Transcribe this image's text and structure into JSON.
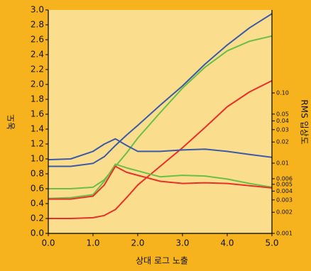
{
  "chart_data": {
    "type": "line",
    "xlabel": "상대 로그 노출",
    "ylabel": "농도",
    "y2label": "RMS 입상도",
    "x": [
      0,
      0.5,
      1,
      1.25,
      1.5,
      1.75,
      2,
      2.5,
      3,
      3.5,
      4,
      4.5,
      5
    ],
    "series": [
      {
        "color": "#3a5ba8",
        "values": [
          0.9,
          0.9,
          0.94,
          1.03,
          1.18,
          1.32,
          1.45,
          1.72,
          1.98,
          2.27,
          2.53,
          2.76,
          2.95
        ]
      },
      {
        "color": "#6bbf45",
        "values": [
          0.6,
          0.6,
          0.62,
          0.72,
          0.9,
          1.08,
          1.28,
          1.62,
          1.95,
          2.23,
          2.45,
          2.58,
          2.65
        ]
      },
      {
        "color": "#e8302a",
        "values": [
          0.2,
          0.2,
          0.21,
          0.24,
          0.32,
          0.48,
          0.65,
          0.9,
          1.15,
          1.42,
          1.7,
          1.9,
          2.05
        ]
      },
      {
        "color": "#3a5ba8",
        "axis": "y2",
        "values": [
          0.0112,
          0.0115,
          0.0147,
          0.0187,
          0.0222,
          0.0179,
          0.0147,
          0.0147,
          0.0154,
          0.0158,
          0.0147,
          0.0133,
          0.0121
        ]
      },
      {
        "color": "#6bbf45",
        "axis": "y2",
        "values": [
          0.00315,
          0.00323,
          0.00356,
          0.00552,
          0.00968,
          0.00857,
          0.00778,
          0.0064,
          0.00672,
          0.00656,
          0.00594,
          0.00514,
          0.00455
        ]
      },
      {
        "color": "#e8302a",
        "axis": "y2",
        "values": [
          0.00308,
          0.00308,
          0.00339,
          0.00489,
          0.00901,
          0.00741,
          0.00672,
          0.00552,
          0.00514,
          0.00526,
          0.00514,
          0.00478,
          0.00444
        ]
      }
    ],
    "xlim": [
      0,
      5
    ],
    "xticks": [
      {
        "value": 0,
        "label": "0.0"
      },
      {
        "value": 1,
        "label": "1.0"
      },
      {
        "value": 2,
        "label": "2.0"
      },
      {
        "value": 3,
        "label": "3.0"
      },
      {
        "value": 4,
        "label": "4.0"
      },
      {
        "value": 5,
        "label": "5.0"
      }
    ],
    "ylim": [
      0,
      3
    ],
    "yticks": [
      {
        "value": 0,
        "label": "0.0"
      },
      0.2,
      0.4,
      0.6,
      0.8,
      {
        "value": 1,
        "label": "1.0"
      },
      1.2,
      1.4,
      1.6,
      1.8,
      {
        "value": 2,
        "label": "2.0"
      },
      2.2,
      2.4,
      2.6,
      2.8,
      {
        "value": 3,
        "label": "3.0"
      }
    ],
    "y2lim": [
      0.001,
      1.52
    ],
    "y2log": true,
    "y2ticks": [
      0.001,
      0.002,
      0.003,
      0.004,
      0.005,
      0.006,
      0.01,
      0.02,
      0.03,
      0.04,
      0.05,
      {
        "value": 0.1,
        "label": "0.10"
      }
    ],
    "plot_background": "#fbdd8e"
  }
}
